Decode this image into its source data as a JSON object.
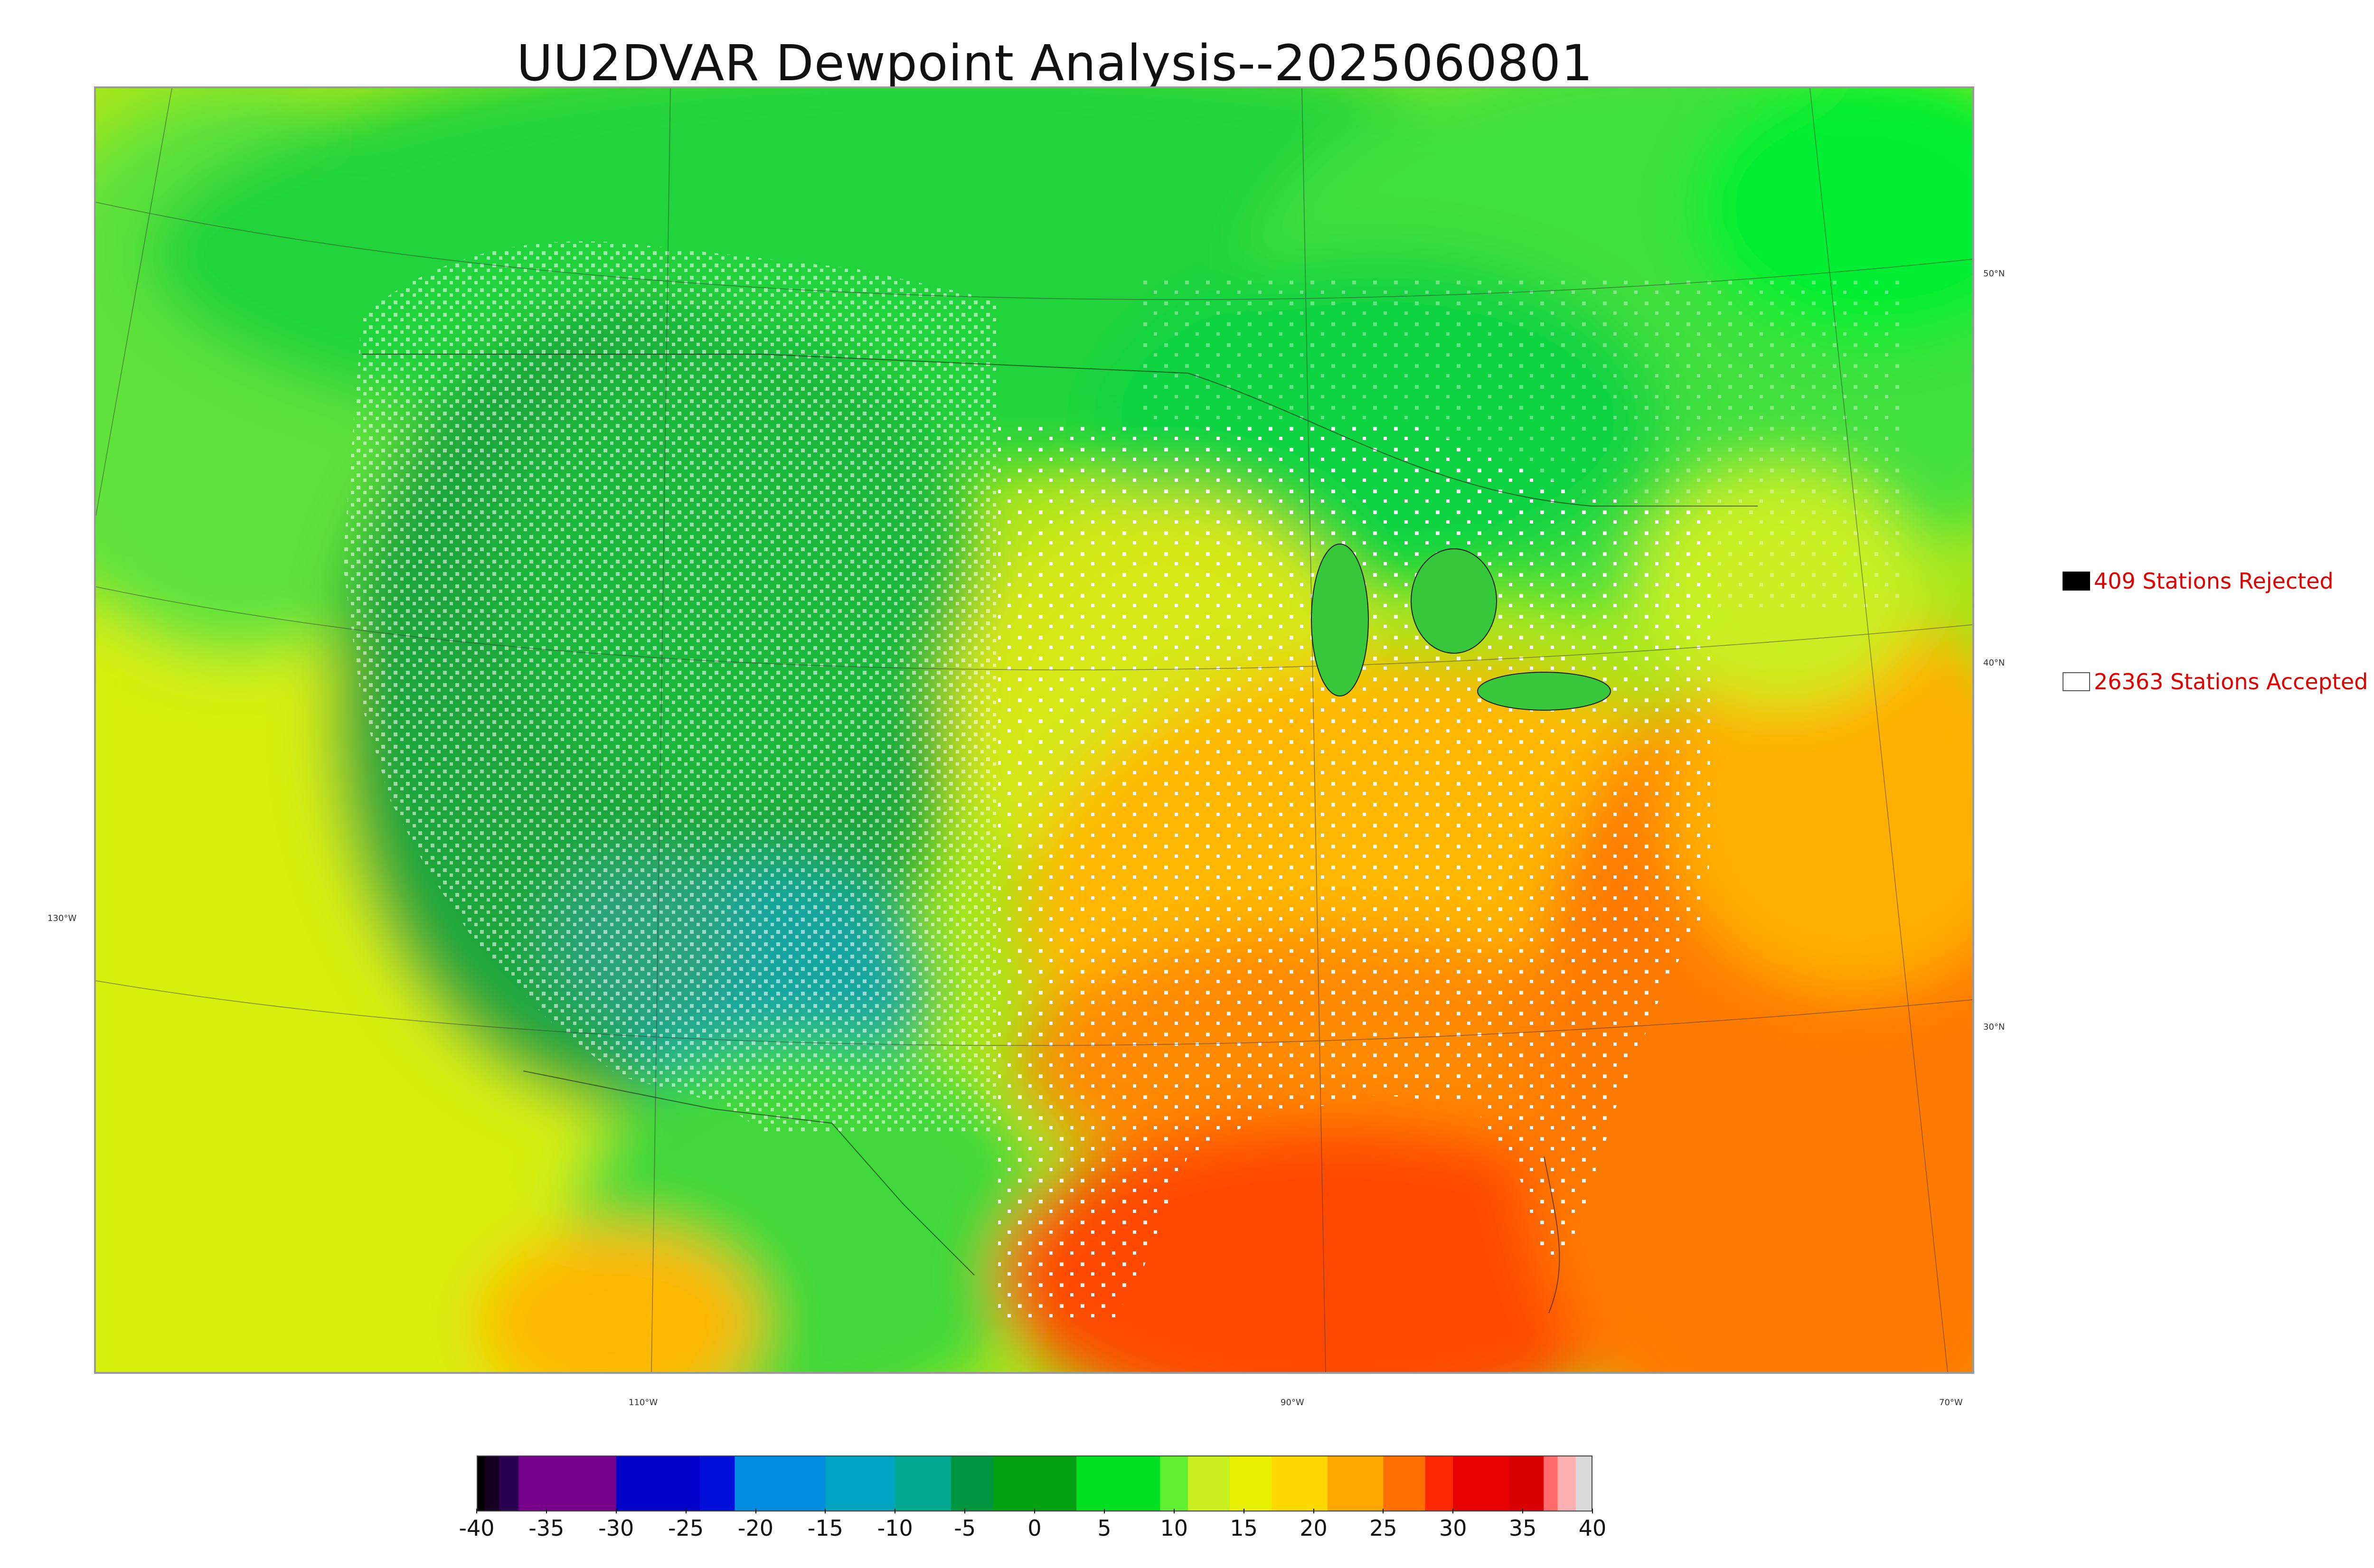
{
  "title": "UU2DVAR Dewpoint Analysis--2025060801",
  "map": {
    "lat_labels": [
      "50°N",
      "40°N",
      "30°N"
    ],
    "lon_labels": [
      "130°W",
      "110°W",
      "90°W",
      "70°W"
    ]
  },
  "legend": {
    "rejected_label": "409 Stations Rejected",
    "accepted_label": "26363 Stations Accepted",
    "rejected_color": "#000000",
    "accepted_color": "#ffffff"
  },
  "colorbar": {
    "ticks": [
      "-40",
      "-35",
      "-30",
      "-25",
      "-20",
      "-15",
      "-10",
      "-5",
      "0",
      "5",
      "10",
      "15",
      "20",
      "25",
      "30",
      "35",
      "40"
    ],
    "range": [
      -40,
      40
    ],
    "segments": [
      {
        "from": -40,
        "to": -39.4,
        "color": "#000000"
      },
      {
        "from": -39.4,
        "to": -38.4,
        "color": "#160022"
      },
      {
        "from": -38.4,
        "to": -37,
        "color": "#2a0050"
      },
      {
        "from": -37,
        "to": -30,
        "color": "#77008a"
      },
      {
        "from": -30,
        "to": -24,
        "color": "#0000c8"
      },
      {
        "from": -24,
        "to": -21.5,
        "color": "#0010d8"
      },
      {
        "from": -21.5,
        "to": -15,
        "color": "#008ce0"
      },
      {
        "from": -15,
        "to": -10,
        "color": "#00a4c0"
      },
      {
        "from": -10,
        "to": -6,
        "color": "#00a890"
      },
      {
        "from": -6,
        "to": -3,
        "color": "#009640"
      },
      {
        "from": -3,
        "to": 3,
        "color": "#00a010"
      },
      {
        "from": 3,
        "to": 9,
        "color": "#00e020"
      },
      {
        "from": 9,
        "to": 11,
        "color": "#60f030"
      },
      {
        "from": 11,
        "to": 14,
        "color": "#c8f020"
      },
      {
        "from": 14,
        "to": 17,
        "color": "#e8f000"
      },
      {
        "from": 17,
        "to": 21,
        "color": "#ffd800"
      },
      {
        "from": 21,
        "to": 25,
        "color": "#ffa800"
      },
      {
        "from": 25,
        "to": 28,
        "color": "#ff7000"
      },
      {
        "from": 28,
        "to": 30,
        "color": "#ff2800"
      },
      {
        "from": 30,
        "to": 34,
        "color": "#e80000"
      },
      {
        "from": 34,
        "to": 36.5,
        "color": "#d80000"
      },
      {
        "from": 36.5,
        "to": 37.5,
        "color": "#ff6a6a"
      },
      {
        "from": 37.5,
        "to": 38.8,
        "color": "#ffb0b0"
      },
      {
        "from": 38.8,
        "to": 40,
        "color": "#d8d8d8"
      }
    ]
  }
}
